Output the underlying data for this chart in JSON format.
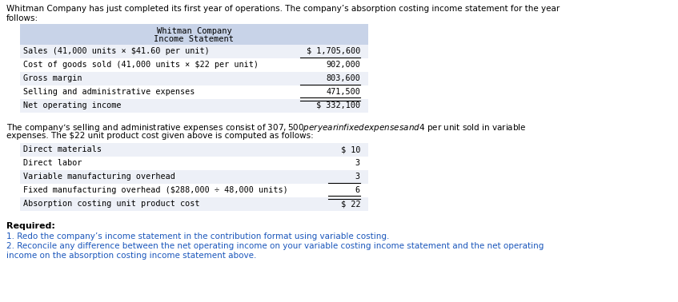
{
  "intro_line1": "Whitman Company has just completed its first year of operations. The company’s absorption costing income statement for the year",
  "intro_line2": "follows:",
  "table1_header1": "Whitman Company",
  "table1_header2": "Income Statement",
  "table1_rows": [
    [
      "Sales (41,000 units × $41.60 per unit)",
      "$ 1,705,600"
    ],
    [
      "Cost of goods sold (41,000 units × $22 per unit)",
      "902,000"
    ],
    [
      "Gross margin",
      "803,600"
    ],
    [
      "Selling and administrative expenses",
      "471,500"
    ],
    [
      "Net operating income",
      "$ 332,100"
    ]
  ],
  "table1_underline_after": [
    1,
    3
  ],
  "table1_double_underline_after": [
    4
  ],
  "middle_line1": "The company’s selling and administrative expenses consist of $307,500 per year in fixed expenses and $4 per unit sold in variable",
  "middle_line2": "expenses. The $22 unit product cost given above is computed as follows:",
  "table2_rows": [
    [
      "Direct materials",
      "$ 10"
    ],
    [
      "Direct labor",
      "3"
    ],
    [
      "Variable manufacturing overhead",
      "3"
    ],
    [
      "Fixed manufacturing overhead ($288,000 ÷ 48,000 units)",
      "6"
    ],
    [
      "Absorption costing unit product cost",
      "$ 22"
    ]
  ],
  "table2_underline_after": [
    3
  ],
  "table2_double_underline_after": [
    4
  ],
  "required_label": "Required:",
  "req1": "1. Redo the company’s income statement in the contribution format using variable costing.",
  "req2_line1": "2. Reconcile any difference between the net operating income on your variable costing income statement and the net operating",
  "req2_line2": "income on the absorption costing income statement above.",
  "bg_color": "#ffffff",
  "header_bg": "#c8d3e8",
  "row_alt_bg": "#edf0f7",
  "row_bg": "#ffffff",
  "text_black": "#000000",
  "text_blue": "#1a56bb",
  "mono_font": "monospace",
  "sans_font": "DejaVu Sans",
  "fs_body": 7.5,
  "fs_table": 7.3,
  "fs_required": 8.0
}
